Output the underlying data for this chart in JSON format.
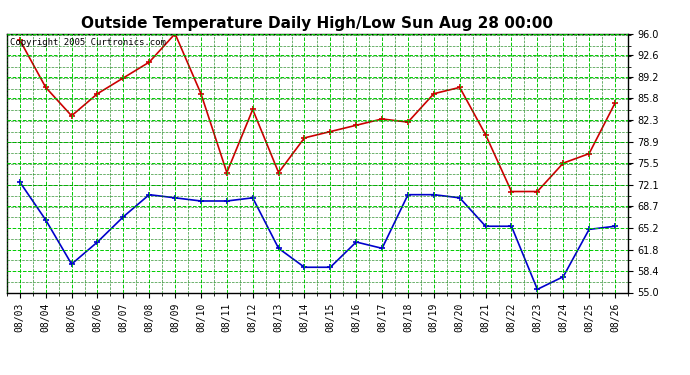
{
  "title": "Outside Temperature Daily High/Low Sun Aug 28 00:00",
  "copyright": "Copyright 2005 Curtronics.com",
  "x_labels": [
    "08/03",
    "08/04",
    "08/05",
    "08/06",
    "08/07",
    "08/08",
    "08/09",
    "08/10",
    "08/11",
    "08/12",
    "08/13",
    "08/14",
    "08/15",
    "08/16",
    "08/17",
    "08/18",
    "08/19",
    "08/20",
    "08/21",
    "08/22",
    "08/23",
    "08/24",
    "08/25",
    "08/26"
  ],
  "high_temps": [
    95.0,
    87.5,
    83.0,
    86.5,
    89.0,
    91.5,
    96.0,
    86.5,
    74.0,
    84.0,
    74.0,
    79.5,
    80.5,
    81.5,
    82.5,
    82.0,
    86.5,
    87.5,
    80.0,
    71.0,
    71.0,
    75.5,
    77.0,
    85.0
  ],
  "low_temps": [
    72.5,
    66.5,
    59.5,
    63.0,
    67.0,
    70.5,
    70.0,
    69.5,
    69.5,
    70.0,
    62.0,
    59.0,
    59.0,
    63.0,
    62.0,
    70.5,
    70.5,
    70.0,
    65.5,
    65.5,
    55.5,
    57.5,
    65.0,
    65.5
  ],
  "high_color": "#cc0000",
  "low_color": "#0000cc",
  "marker": "+",
  "markersize": 5,
  "markeredgewidth": 1.2,
  "linewidth": 1.2,
  "ylim": [
    55.0,
    96.0
  ],
  "yticks": [
    55.0,
    58.4,
    61.8,
    65.2,
    68.7,
    72.1,
    75.5,
    78.9,
    82.3,
    85.8,
    89.2,
    92.6,
    96.0
  ],
  "bg_color": "#ffffff",
  "plot_bg_color": "#ffffff",
  "grid_major_color": "#00cc00",
  "grid_minor_color": "#007700",
  "title_fontsize": 11,
  "tick_fontsize": 7,
  "copyright_fontsize": 6.5
}
